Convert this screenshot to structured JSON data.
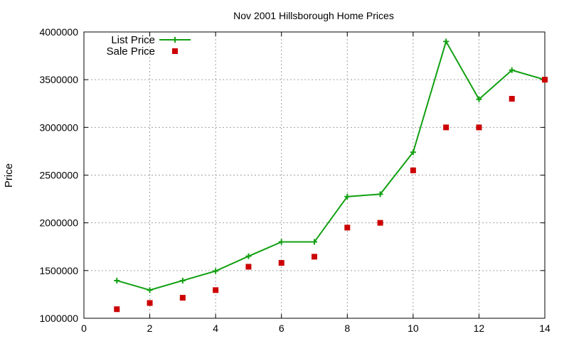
{
  "chart_data": {
    "type": "line",
    "title": "Nov 2001 Hillsborough Home Prices",
    "xlabel": "",
    "ylabel": "Price",
    "xlim": [
      0,
      14
    ],
    "ylim": [
      1000000,
      4000000
    ],
    "xticks": [
      0,
      2,
      4,
      6,
      8,
      10,
      12,
      14
    ],
    "yticks": [
      1000000,
      1500000,
      2000000,
      2500000,
      3000000,
      3500000,
      4000000
    ],
    "grid": true,
    "legend_position": "top-left",
    "series": [
      {
        "name": "List Price",
        "style": "line-with-plus-markers",
        "color": "#11a011",
        "x": [
          1,
          2,
          3,
          4,
          5,
          6,
          7,
          8,
          9,
          10,
          11,
          12,
          13,
          14
        ],
        "y": [
          1395000,
          1295000,
          1395000,
          1495000,
          1650000,
          1800000,
          1800000,
          2275000,
          2300000,
          2740000,
          3900000,
          3295000,
          3600000,
          3500000
        ]
      },
      {
        "name": "Sale Price",
        "style": "square-markers",
        "color": "#cc0000",
        "x": [
          1,
          2,
          3,
          4,
          5,
          6,
          7,
          8,
          9,
          10,
          11,
          12,
          13,
          14
        ],
        "y": [
          1095000,
          1160000,
          1215000,
          1295000,
          1540000,
          1580000,
          1645000,
          1950000,
          2000000,
          2550000,
          3000000,
          3000000,
          3300000,
          3500000
        ]
      }
    ]
  }
}
